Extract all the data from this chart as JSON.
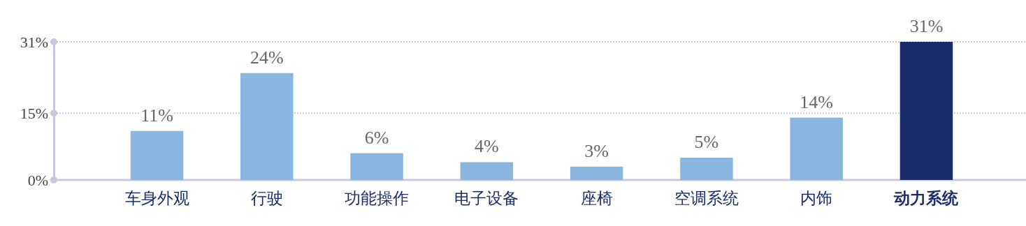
{
  "chart_data": {
    "type": "bar",
    "categories": [
      "车身外观",
      "行驶",
      "功能操作",
      "电子设备",
      "座椅",
      "空调系统",
      "内饰",
      "动力系统"
    ],
    "values": [
      11,
      24,
      6,
      4,
      3,
      5,
      14,
      31
    ],
    "colors": [
      "#8ab6e2",
      "#8ab6e2",
      "#8ab6e2",
      "#8ab6e2",
      "#8ab6e2",
      "#8ab6e2",
      "#8ab6e2",
      "#1a2d6b"
    ],
    "value_labels": [
      "11%",
      "24%",
      "6%",
      "4%",
      "3%",
      "5%",
      "14%",
      "31%"
    ],
    "ylim": [
      0,
      31
    ],
    "yticks": [
      {
        "value": 0,
        "label": "0%"
      },
      {
        "value": 15,
        "label": "15%"
      },
      {
        "value": 31,
        "label": "31%"
      }
    ],
    "grid": "y"
  }
}
